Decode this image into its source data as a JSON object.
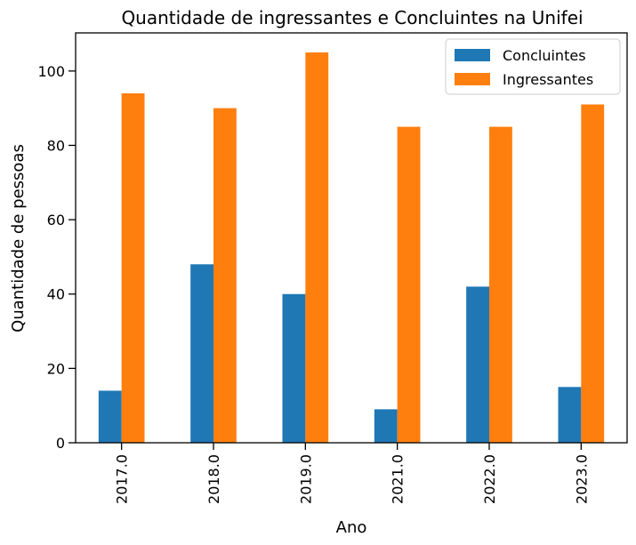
{
  "chart_data": {
    "type": "bar",
    "title": "Quantidade de ingressantes e Concluintes na Unifei",
    "xlabel": "Ano",
    "ylabel": "Quantidade de pessoas",
    "categories": [
      "2017.0",
      "2018.0",
      "2019.0",
      "2021.0",
      "2022.0",
      "2023.0"
    ],
    "series": [
      {
        "name": "Concluintes",
        "values": [
          14,
          48,
          40,
          9,
          42,
          15
        ],
        "color": "#1f77b4"
      },
      {
        "name": "Ingressantes",
        "values": [
          94,
          90,
          105,
          85,
          85,
          91
        ],
        "color": "#ff7f0e"
      }
    ],
    "ylim": [
      0,
      110.25
    ],
    "yticks": [
      0,
      20,
      40,
      60,
      80,
      100
    ],
    "grid": false,
    "legend": "top-right"
  }
}
